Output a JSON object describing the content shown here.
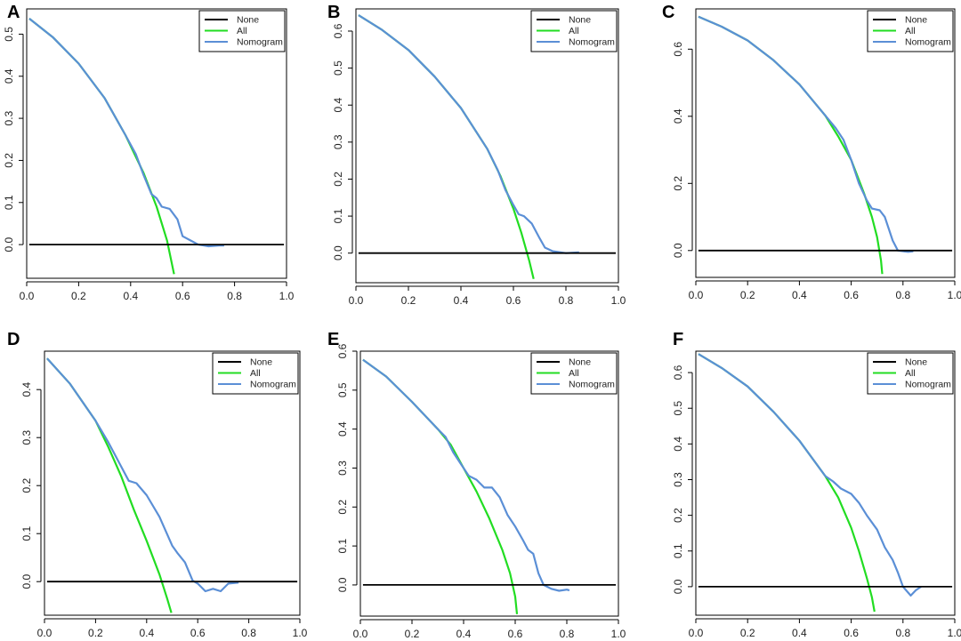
{
  "chart_data": [
    {
      "panel": "A",
      "type": "line",
      "xlim": [
        0.0,
        1.0
      ],
      "xticks": [
        "0.0",
        "0.2",
        "0.4",
        "0.6",
        "0.8",
        "1.0"
      ],
      "ylim": [
        -0.08,
        0.56
      ],
      "yticks": [
        "0.0",
        "0.1",
        "0.2",
        "0.3",
        "0.4",
        "0.5"
      ],
      "legend": [
        "None",
        "All",
        "Nomogram"
      ],
      "colors": {
        "None": "#000000",
        "All": "#22dd22",
        "Nomogram": "#5b8fd6"
      },
      "series": {
        "None": [
          [
            0.01,
            0.0
          ],
          [
            0.99,
            0.0
          ]
        ],
        "All": [
          [
            0.01,
            0.537
          ],
          [
            0.1,
            0.493
          ],
          [
            0.2,
            0.43
          ],
          [
            0.3,
            0.348
          ],
          [
            0.38,
            0.26
          ],
          [
            0.45,
            0.17
          ],
          [
            0.5,
            0.09
          ],
          [
            0.54,
            0.01
          ],
          [
            0.567,
            -0.07
          ]
        ],
        "Nomogram": [
          [
            0.01,
            0.537
          ],
          [
            0.1,
            0.493
          ],
          [
            0.2,
            0.43
          ],
          [
            0.3,
            0.348
          ],
          [
            0.38,
            0.26
          ],
          [
            0.42,
            0.215
          ],
          [
            0.45,
            0.165
          ],
          [
            0.48,
            0.12
          ],
          [
            0.5,
            0.11
          ],
          [
            0.52,
            0.09
          ],
          [
            0.55,
            0.085
          ],
          [
            0.58,
            0.06
          ],
          [
            0.6,
            0.02
          ],
          [
            0.63,
            0.01
          ],
          [
            0.66,
            0.0
          ],
          [
            0.7,
            -0.004
          ],
          [
            0.74,
            -0.002
          ],
          [
            0.76,
            -0.002
          ]
        ]
      }
    },
    {
      "panel": "B",
      "type": "line",
      "xlim": [
        0.0,
        1.0
      ],
      "xticks": [
        "0.0",
        "0.2",
        "0.4",
        "0.6",
        "0.8",
        "1.0"
      ],
      "ylim": [
        -0.08,
        0.66
      ],
      "yticks": [
        "0.0",
        "0.1",
        "0.2",
        "0.3",
        "0.4",
        "0.5",
        "0.6"
      ],
      "legend": [
        "None",
        "All",
        "Nomogram"
      ],
      "colors": {
        "None": "#000000",
        "All": "#22dd22",
        "Nomogram": "#5b8fd6"
      },
      "series": {
        "None": [
          [
            0.01,
            0.0
          ],
          [
            0.99,
            0.0
          ]
        ],
        "All": [
          [
            0.01,
            0.643
          ],
          [
            0.1,
            0.603
          ],
          [
            0.2,
            0.549
          ],
          [
            0.3,
            0.477
          ],
          [
            0.4,
            0.392
          ],
          [
            0.5,
            0.282
          ],
          [
            0.55,
            0.209
          ],
          [
            0.6,
            0.12
          ],
          [
            0.63,
            0.055
          ],
          [
            0.66,
            -0.02
          ],
          [
            0.677,
            -0.07
          ]
        ],
        "Nomogram": [
          [
            0.01,
            0.643
          ],
          [
            0.1,
            0.603
          ],
          [
            0.2,
            0.549
          ],
          [
            0.3,
            0.477
          ],
          [
            0.4,
            0.392
          ],
          [
            0.5,
            0.282
          ],
          [
            0.54,
            0.225
          ],
          [
            0.57,
            0.17
          ],
          [
            0.6,
            0.13
          ],
          [
            0.62,
            0.105
          ],
          [
            0.64,
            0.1
          ],
          [
            0.67,
            0.08
          ],
          [
            0.7,
            0.04
          ],
          [
            0.72,
            0.015
          ],
          [
            0.75,
            0.005
          ],
          [
            0.8,
            0.0
          ],
          [
            0.85,
            0.002
          ]
        ]
      }
    },
    {
      "panel": "C",
      "type": "line",
      "xlim": [
        0.0,
        1.0
      ],
      "xticks": [
        "0.0",
        "0.2",
        "0.4",
        "0.6",
        "0.8",
        "1.0"
      ],
      "ylim": [
        -0.08,
        0.72
      ],
      "yticks": [
        "0.0",
        "0.2",
        "0.4",
        "0.6"
      ],
      "legend": [
        "None",
        "All",
        "Nomogram"
      ],
      "colors": {
        "None": "#000000",
        "All": "#22dd22",
        "Nomogram": "#5b8fd6"
      },
      "series": {
        "None": [
          [
            0.01,
            0.0
          ],
          [
            0.99,
            0.0
          ]
        ],
        "All": [
          [
            0.01,
            0.697
          ],
          [
            0.1,
            0.667
          ],
          [
            0.2,
            0.626
          ],
          [
            0.3,
            0.567
          ],
          [
            0.4,
            0.495
          ],
          [
            0.5,
            0.402
          ],
          [
            0.55,
            0.34
          ],
          [
            0.6,
            0.27
          ],
          [
            0.65,
            0.17
          ],
          [
            0.68,
            0.1
          ],
          [
            0.7,
            0.04
          ],
          [
            0.715,
            -0.03
          ],
          [
            0.72,
            -0.07
          ]
        ],
        "Nomogram": [
          [
            0.01,
            0.697
          ],
          [
            0.1,
            0.667
          ],
          [
            0.2,
            0.626
          ],
          [
            0.3,
            0.567
          ],
          [
            0.4,
            0.495
          ],
          [
            0.5,
            0.402
          ],
          [
            0.54,
            0.365
          ],
          [
            0.57,
            0.33
          ],
          [
            0.6,
            0.27
          ],
          [
            0.63,
            0.2
          ],
          [
            0.66,
            0.15
          ],
          [
            0.68,
            0.125
          ],
          [
            0.71,
            0.12
          ],
          [
            0.73,
            0.1
          ],
          [
            0.76,
            0.03
          ],
          [
            0.78,
            0.0
          ],
          [
            0.82,
            -0.004
          ],
          [
            0.84,
            -0.002
          ]
        ]
      }
    },
    {
      "panel": "D",
      "type": "line",
      "xlim": [
        0.0,
        1.0
      ],
      "xticks": [
        "0.0",
        "0.2",
        "0.4",
        "0.6",
        "0.8",
        "1.0"
      ],
      "ylim": [
        -0.07,
        0.48
      ],
      "yticks": [
        "0.0",
        "0.1",
        "0.2",
        "0.3",
        "0.4"
      ],
      "legend": [
        "None",
        "All",
        "Nomogram"
      ],
      "colors": {
        "None": "#000000",
        "All": "#22dd22",
        "Nomogram": "#5b8fd6"
      },
      "series": {
        "None": [
          [
            0.01,
            0.0
          ],
          [
            0.99,
            0.0
          ]
        ],
        "All": [
          [
            0.01,
            0.465
          ],
          [
            0.1,
            0.412
          ],
          [
            0.2,
            0.335
          ],
          [
            0.25,
            0.28
          ],
          [
            0.3,
            0.22
          ],
          [
            0.35,
            0.15
          ],
          [
            0.4,
            0.085
          ],
          [
            0.45,
            0.015
          ],
          [
            0.48,
            -0.035
          ],
          [
            0.497,
            -0.065
          ]
        ],
        "Nomogram": [
          [
            0.01,
            0.465
          ],
          [
            0.1,
            0.412
          ],
          [
            0.2,
            0.335
          ],
          [
            0.25,
            0.29
          ],
          [
            0.3,
            0.24
          ],
          [
            0.33,
            0.21
          ],
          [
            0.36,
            0.205
          ],
          [
            0.4,
            0.18
          ],
          [
            0.45,
            0.135
          ],
          [
            0.5,
            0.075
          ],
          [
            0.52,
            0.06
          ],
          [
            0.55,
            0.04
          ],
          [
            0.58,
            0.002
          ],
          [
            0.6,
            -0.004
          ],
          [
            0.63,
            -0.02
          ],
          [
            0.66,
            -0.015
          ],
          [
            0.69,
            -0.02
          ],
          [
            0.72,
            -0.004
          ],
          [
            0.76,
            -0.002
          ]
        ]
      }
    },
    {
      "panel": "E",
      "type": "line",
      "xlim": [
        0.0,
        1.0
      ],
      "xticks": [
        "0.0",
        "0.2",
        "0.4",
        "0.6",
        "0.8",
        "1.0"
      ],
      "ylim": [
        -0.08,
        0.6
      ],
      "yticks": [
        "0.0",
        "0.1",
        "0.2",
        "0.3",
        "0.4",
        "0.5",
        "0.6"
      ],
      "legend": [
        "None",
        "All",
        "Nomogram"
      ],
      "colors": {
        "None": "#000000",
        "All": "#22dd22",
        "Nomogram": "#5b8fd6"
      },
      "series": {
        "None": [
          [
            0.01,
            0.0
          ],
          [
            0.99,
            0.0
          ]
        ],
        "All": [
          [
            0.01,
            0.578
          ],
          [
            0.1,
            0.535
          ],
          [
            0.2,
            0.47
          ],
          [
            0.3,
            0.4
          ],
          [
            0.35,
            0.36
          ],
          [
            0.4,
            0.3
          ],
          [
            0.45,
            0.24
          ],
          [
            0.5,
            0.17
          ],
          [
            0.55,
            0.09
          ],
          [
            0.58,
            0.03
          ],
          [
            0.6,
            -0.03
          ],
          [
            0.607,
            -0.075
          ]
        ],
        "Nomogram": [
          [
            0.01,
            0.578
          ],
          [
            0.1,
            0.535
          ],
          [
            0.2,
            0.47
          ],
          [
            0.3,
            0.4
          ],
          [
            0.33,
            0.38
          ],
          [
            0.36,
            0.34
          ],
          [
            0.39,
            0.31
          ],
          [
            0.42,
            0.28
          ],
          [
            0.45,
            0.27
          ],
          [
            0.48,
            0.25
          ],
          [
            0.51,
            0.25
          ],
          [
            0.54,
            0.225
          ],
          [
            0.57,
            0.18
          ],
          [
            0.6,
            0.15
          ],
          [
            0.63,
            0.115
          ],
          [
            0.65,
            0.09
          ],
          [
            0.67,
            0.08
          ],
          [
            0.69,
            0.03
          ],
          [
            0.71,
            0.0
          ],
          [
            0.74,
            -0.01
          ],
          [
            0.77,
            -0.015
          ],
          [
            0.8,
            -0.012
          ],
          [
            0.81,
            -0.014
          ]
        ]
      }
    },
    {
      "panel": "F",
      "type": "line",
      "xlim": [
        0.0,
        1.0
      ],
      "xticks": [
        "0.0",
        "0.2",
        "0.4",
        "0.6",
        "0.8",
        "1.0"
      ],
      "ylim": [
        -0.08,
        0.66
      ],
      "yticks": [
        "0.0",
        "0.1",
        "0.2",
        "0.3",
        "0.4",
        "0.5",
        "0.6"
      ],
      "legend": [
        "None",
        "All",
        "Nomogram"
      ],
      "colors": {
        "None": "#000000",
        "All": "#22dd22",
        "Nomogram": "#5b8fd6"
      },
      "series": {
        "None": [
          [
            0.01,
            0.0
          ],
          [
            0.99,
            0.0
          ]
        ],
        "All": [
          [
            0.01,
            0.652
          ],
          [
            0.1,
            0.613
          ],
          [
            0.2,
            0.561
          ],
          [
            0.3,
            0.49
          ],
          [
            0.4,
            0.409
          ],
          [
            0.5,
            0.31
          ],
          [
            0.55,
            0.25
          ],
          [
            0.6,
            0.165
          ],
          [
            0.63,
            0.1
          ],
          [
            0.66,
            0.025
          ],
          [
            0.68,
            -0.03
          ],
          [
            0.69,
            -0.07
          ]
        ],
        "Nomogram": [
          [
            0.01,
            0.652
          ],
          [
            0.1,
            0.613
          ],
          [
            0.2,
            0.561
          ],
          [
            0.3,
            0.49
          ],
          [
            0.4,
            0.409
          ],
          [
            0.5,
            0.31
          ],
          [
            0.53,
            0.295
          ],
          [
            0.56,
            0.275
          ],
          [
            0.6,
            0.26
          ],
          [
            0.63,
            0.235
          ],
          [
            0.66,
            0.2
          ],
          [
            0.7,
            0.16
          ],
          [
            0.73,
            0.11
          ],
          [
            0.76,
            0.075
          ],
          [
            0.78,
            0.04
          ],
          [
            0.8,
            0.0
          ],
          [
            0.83,
            -0.025
          ],
          [
            0.85,
            -0.01
          ],
          [
            0.87,
            0.0
          ]
        ]
      }
    }
  ]
}
